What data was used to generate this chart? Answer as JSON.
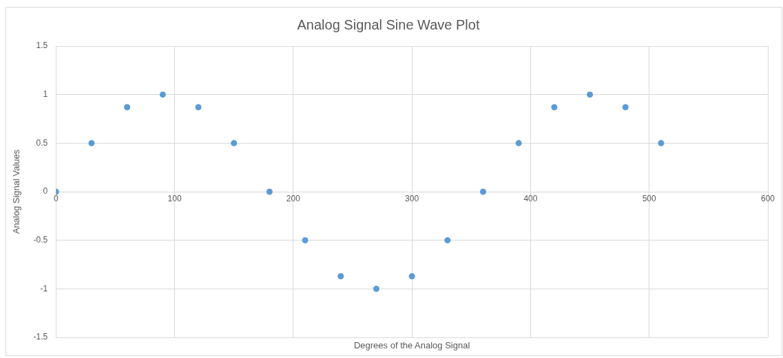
{
  "chart_data": {
    "type": "scatter",
    "title": "Analog Signal Sine Wave Plot",
    "xlabel": "Degrees of the Analog Signal",
    "ylabel": "Analog Signal Values",
    "x": [
      0,
      30,
      60,
      90,
      120,
      150,
      180,
      210,
      240,
      270,
      300,
      330,
      360,
      390,
      420,
      450,
      480,
      510
    ],
    "series": [
      {
        "color": "#5b9bd5",
        "values": [
          0,
          0.5,
          0.87,
          1,
          0.87,
          0.5,
          0,
          -0.5,
          -0.87,
          -1,
          -0.87,
          -0.5,
          0,
          0.5,
          0.87,
          1,
          0.87,
          0.5
        ]
      }
    ],
    "xlim": [
      0,
      600
    ],
    "xticks": [
      0,
      100,
      200,
      300,
      400,
      500,
      600
    ],
    "ylim": [
      -1.5,
      1.5
    ],
    "yticks": [
      -1.5,
      -1,
      -0.5,
      0,
      0.5,
      1,
      1.5
    ],
    "grid": true,
    "legend": false,
    "marker": "circle"
  }
}
